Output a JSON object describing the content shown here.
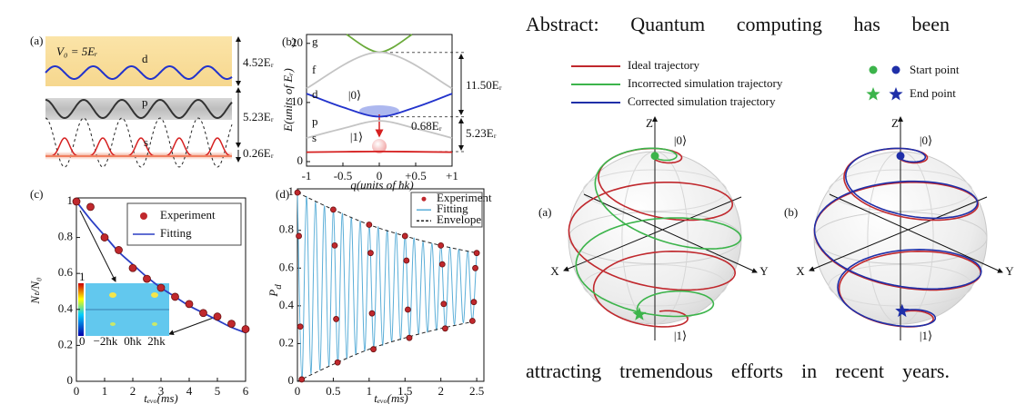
{
  "panel_a": {
    "label": "(a)",
    "potential": "V₀ = 5Eᵣ",
    "bands": [
      "d",
      "p",
      "s"
    ],
    "gaps": [
      "4.52Eᵣ",
      "5.23Eᵣ",
      "0.26Eᵣ"
    ]
  },
  "chart_data": [
    {
      "type": "line",
      "label": "(b)",
      "xlabel": "q(units of ħk)",
      "ylabel": "E(units of Eᵣ)",
      "xlim": [
        -1,
        1
      ],
      "ylim": [
        0,
        21.5
      ],
      "xticks": [
        -1,
        -0.5,
        0,
        {
          "value": 0.5,
          "label": "+0.5"
        },
        {
          "value": 1,
          "label": "+1"
        }
      ],
      "yticks": [
        0,
        10,
        20
      ],
      "series": [
        {
          "name": "g",
          "color": "#6aaa3a",
          "x": [
            -0.45,
            0,
            0.45
          ],
          "values": [
            21.5,
            18.5,
            21.5
          ]
        },
        {
          "name": "f",
          "color": "#c4c4c4",
          "x": [
            -1,
            0,
            1
          ],
          "values": [
            12.4,
            18.5,
            12.4
          ]
        },
        {
          "name": "d",
          "color": "#2233cc",
          "x": [
            -1,
            -0.5,
            0,
            0.5,
            1
          ],
          "values": [
            11.5,
            9.2,
            7.6,
            9.2,
            11.5
          ]
        },
        {
          "name": "p",
          "color": "#c4c4c4",
          "x": [
            -1,
            -0.5,
            0,
            0.5,
            1
          ],
          "values": [
            4.0,
            5.6,
            6.9,
            5.6,
            4.0
          ]
        },
        {
          "name": "s",
          "color": "#d62020",
          "x": [
            -1,
            0,
            1
          ],
          "values": [
            1.6,
            1.7,
            1.6
          ]
        }
      ],
      "annotations": [
        "11.50Eᵣ",
        "5.23Eᵣ",
        "0.68Eᵣ",
        "|0⟩",
        "|1⟩"
      ]
    },
    {
      "type": "line",
      "label": "(c)",
      "xlabel": "tₑᵥₒ(ms)",
      "ylabel": "Nₜ/N₀",
      "xlim": [
        0,
        6
      ],
      "ylim": [
        0,
        1.02
      ],
      "xticks": [
        0,
        1,
        2,
        3,
        4,
        5,
        6
      ],
      "yticks": [
        0,
        0.2,
        0.4,
        0.6,
        0.8,
        1
      ],
      "series": [
        {
          "name": "Experiment",
          "type": "scatter",
          "color": "#c0282d",
          "x": [
            0,
            0.5,
            1,
            1.5,
            2,
            2.5,
            3,
            3.5,
            4,
            4.5,
            5,
            5.5,
            6
          ],
          "values": [
            1.0,
            0.97,
            0.8,
            0.73,
            0.63,
            0.57,
            0.52,
            0.47,
            0.43,
            0.38,
            0.36,
            0.32,
            0.29
          ]
        },
        {
          "name": "Fitting",
          "color": "#2b3fc4",
          "x": [
            0,
            0.5,
            1,
            1.5,
            2,
            2.5,
            3,
            3.5,
            4,
            4.5,
            5,
            5.5,
            6
          ],
          "values": [
            1.0,
            0.9,
            0.81,
            0.72,
            0.65,
            0.58,
            0.52,
            0.47,
            0.42,
            0.38,
            0.34,
            0.3,
            0.27
          ]
        }
      ],
      "inset": {
        "colorbar": [
          "1",
          "0"
        ],
        "xticks": [
          "−2ħk",
          "0ħk",
          "2ħk"
        ]
      }
    },
    {
      "type": "line",
      "label": "(d)",
      "xlabel": "tₑᵥₒ(ms)",
      "ylabel": "P",
      "ylabel_sub": "d",
      "xlim": [
        0,
        2.6
      ],
      "ylim": [
        0,
        1.02
      ],
      "xticks": [
        0,
        0.5,
        1,
        1.5,
        2,
        2.5
      ],
      "yticks": [
        0,
        0.2,
        0.4,
        0.6,
        0.8,
        1
      ],
      "series": [
        {
          "name": "Experiment",
          "type": "scatter",
          "color": "#c0282d",
          "x": [
            0,
            0.02,
            0.04,
            0.06,
            0.5,
            0.52,
            0.54,
            0.56,
            1.0,
            1.02,
            1.04,
            1.06,
            1.5,
            1.52,
            1.54,
            1.56,
            2.0,
            2.02,
            2.04,
            2.06,
            2.44,
            2.46,
            2.48,
            2.5
          ],
          "values": [
            1.0,
            0.77,
            0.29,
            0.01,
            0.91,
            0.72,
            0.33,
            0.1,
            0.83,
            0.68,
            0.36,
            0.17,
            0.77,
            0.64,
            0.38,
            0.23,
            0.72,
            0.62,
            0.41,
            0.28,
            0.32,
            0.42,
            0.6,
            0.68
          ]
        },
        {
          "name": "Fitting",
          "color": "#5aaed8",
          "x": [
            0,
            0.0625,
            0.125,
            0.1875,
            0.25,
            0.3125,
            0.375,
            0.4375,
            0.5,
            0.5625,
            0.625,
            0.6875,
            0.75,
            0.8125,
            0.875,
            0.9375,
            1,
            1.0625,
            1.125,
            1.1875,
            1.25,
            1.3125,
            1.375,
            1.4375,
            1.5,
            1.5625,
            1.625,
            1.6875,
            1.75,
            1.8125,
            1.875,
            1.9375,
            2,
            2.0625,
            2.125,
            2.1875,
            2.25,
            2.3125,
            2.375,
            2.4375,
            2.5
          ],
          "values": [
            1.0,
            0.01,
            0.98,
            0.04,
            0.95,
            0.06,
            0.93,
            0.08,
            0.91,
            0.1,
            0.89,
            0.12,
            0.87,
            0.14,
            0.85,
            0.16,
            0.83,
            0.18,
            0.82,
            0.19,
            0.8,
            0.21,
            0.79,
            0.22,
            0.77,
            0.24,
            0.76,
            0.25,
            0.74,
            0.26,
            0.73,
            0.27,
            0.72,
            0.28,
            0.71,
            0.3,
            0.7,
            0.31,
            0.69,
            0.32,
            0.68
          ]
        },
        {
          "name": "Envelope",
          "color": "#222222",
          "dash": true,
          "x": [
            0,
            0.5,
            1,
            1.5,
            2,
            2.5
          ],
          "values": [
            1.0,
            0.91,
            0.83,
            0.77,
            0.72,
            0.68
          ],
          "lower": [
            0.0,
            0.09,
            0.17,
            0.23,
            0.28,
            0.32
          ]
        }
      ]
    }
  ],
  "abstract": {
    "first_line": "Abstract: Quantum computing has been",
    "last_line": "attracting tremendous efforts in recent years."
  },
  "legend": {
    "trajectories": [
      "Ideal trajectory",
      "Incorrected simulation trajectory",
      "Corrected simulation trajectory"
    ],
    "points": [
      "Start point",
      "End point"
    ]
  },
  "bloch": [
    {
      "label": "(a)",
      "axes": [
        "Z",
        "X",
        "Y"
      ],
      "states": [
        "|0⟩",
        "|1⟩"
      ]
    },
    {
      "label": "(b)",
      "axes": [
        "Z",
        "X",
        "Y"
      ],
      "states": [
        "|0⟩",
        "|1⟩"
      ]
    }
  ]
}
